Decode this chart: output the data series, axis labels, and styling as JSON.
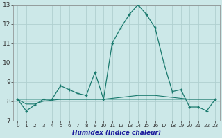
{
  "xlabel": "Humidex (Indice chaleur)",
  "background_color": "#cce8e8",
  "grid_color": "#b0d0d0",
  "line_color": "#1a7a6e",
  "xlim": [
    -0.5,
    23.5
  ],
  "ylim": [
    7,
    13
  ],
  "yticks": [
    7,
    8,
    9,
    10,
    11,
    12,
    13
  ],
  "xticks": [
    0,
    1,
    2,
    3,
    4,
    5,
    6,
    7,
    8,
    9,
    10,
    11,
    12,
    13,
    14,
    15,
    16,
    17,
    18,
    19,
    20,
    21,
    22,
    23
  ],
  "series": [
    [
      8.1,
      7.5,
      7.8,
      8.1,
      8.1,
      8.8,
      8.6,
      8.4,
      8.3,
      9.5,
      8.1,
      11.0,
      11.8,
      12.5,
      13.0,
      12.5,
      11.8,
      10.0,
      8.5,
      8.6,
      7.7,
      7.7,
      7.5,
      8.1
    ],
    [
      8.1,
      8.1,
      8.1,
      8.1,
      8.1,
      8.1,
      8.1,
      8.1,
      8.1,
      8.1,
      8.1,
      8.15,
      8.2,
      8.25,
      8.3,
      8.3,
      8.3,
      8.25,
      8.2,
      8.15,
      8.1,
      8.1,
      8.1,
      8.1
    ],
    [
      8.1,
      7.85,
      7.85,
      8.0,
      8.05,
      8.1,
      8.1,
      8.1,
      8.1,
      8.1,
      8.1,
      8.1,
      8.1,
      8.1,
      8.1,
      8.1,
      8.1,
      8.1,
      8.1,
      8.1,
      8.1,
      8.1,
      8.1,
      8.1
    ]
  ]
}
